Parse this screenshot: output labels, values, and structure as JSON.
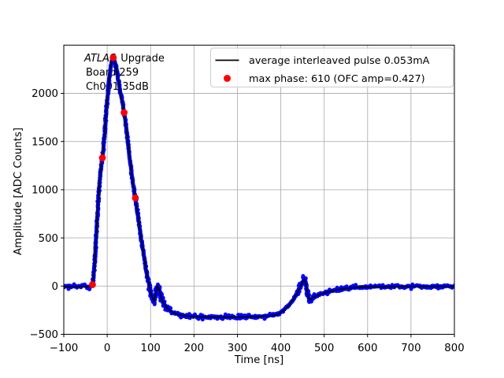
{
  "chart_data": {
    "type": "line",
    "title": "",
    "xlabel": "Time [ns]",
    "ylabel": "Amplitude [ADC Counts]",
    "xlim": [
      -100,
      800
    ],
    "ylim": [
      -500,
      2500
    ],
    "grid": true,
    "xticks": [
      -100,
      0,
      100,
      200,
      300,
      400,
      500,
      600,
      700,
      800
    ],
    "xtick_labels": [
      "−100",
      "0",
      "100",
      "200",
      "300",
      "400",
      "500",
      "600",
      "700",
      "800"
    ],
    "yticks": [
      -500,
      0,
      500,
      1000,
      1500,
      2000
    ],
    "ytick_labels": [
      "−500",
      "0",
      "500",
      "1000",
      "1500",
      "2000"
    ],
    "colors": {
      "line": "#000000",
      "samples": "#0000ff",
      "ofc_dots": "#ff0000",
      "grid": "#b0b0b0"
    },
    "legend": {
      "position": "upper right",
      "entries": [
        {
          "label": "average interleaved pulse 0.053mA",
          "marker": "line",
          "color": "#000000"
        },
        {
          "label": "max phase: 610 (OFC amp=0.427)",
          "marker": "dot",
          "color": "#ff0000"
        }
      ]
    },
    "annotation": {
      "line1_italic": "ATLAS",
      "line1_rest": "Upgrade",
      "line2": "Board 259",
      "line3": "Ch001 35dB"
    },
    "series": [
      {
        "name": "average interleaved pulse 0.053mA",
        "type": "line",
        "color": "#000000",
        "points": [
          [
            -100,
            -5
          ],
          [
            -90,
            -6
          ],
          [
            -80,
            -4
          ],
          [
            -70,
            -6
          ],
          [
            -60,
            -5
          ],
          [
            -50,
            -4
          ],
          [
            -43,
            -5
          ],
          [
            -38,
            -3
          ],
          [
            -35,
            8
          ],
          [
            -32,
            70
          ],
          [
            -29,
            220
          ],
          [
            -26,
            450
          ],
          [
            -23,
            710
          ],
          [
            -20,
            940
          ],
          [
            -17,
            1110
          ],
          [
            -14,
            1230
          ],
          [
            -11,
            1330
          ],
          [
            -8,
            1470
          ],
          [
            -5,
            1645
          ],
          [
            -2,
            1815
          ],
          [
            1,
            1985
          ],
          [
            4,
            2130
          ],
          [
            7,
            2245
          ],
          [
            10,
            2320
          ],
          [
            12,
            2355
          ],
          [
            14,
            2370
          ],
          [
            16,
            2350
          ],
          [
            19,
            2300
          ],
          [
            22,
            2235
          ],
          [
            26,
            2130
          ],
          [
            30,
            2015
          ],
          [
            35,
            1905
          ],
          [
            39,
            1800
          ],
          [
            44,
            1630
          ],
          [
            49,
            1445
          ],
          [
            54,
            1255
          ],
          [
            59,
            1075
          ],
          [
            62,
            995
          ],
          [
            65,
            915
          ],
          [
            69,
            790
          ],
          [
            73,
            660
          ],
          [
            77,
            535
          ],
          [
            81,
            415
          ],
          [
            85,
            300
          ],
          [
            89,
            190
          ],
          [
            93,
            90
          ],
          [
            96,
            20
          ],
          [
            99,
            -45
          ],
          [
            102,
            -95
          ],
          [
            105,
            -125
          ],
          [
            108,
            -162
          ],
          [
            111,
            -95
          ],
          [
            114,
            -25
          ],
          [
            116,
            5
          ],
          [
            118,
            -12
          ],
          [
            121,
            -62
          ],
          [
            124,
            -112
          ],
          [
            127,
            -152
          ],
          [
            131,
            -188
          ],
          [
            136,
            -218
          ],
          [
            142,
            -245
          ],
          [
            149,
            -267
          ],
          [
            157,
            -285
          ],
          [
            166,
            -297
          ],
          [
            176,
            -306
          ],
          [
            188,
            -313
          ],
          [
            202,
            -317
          ],
          [
            218,
            -320
          ],
          [
            235,
            -322
          ],
          [
            252,
            -323
          ],
          [
            270,
            -323
          ],
          [
            288,
            -322
          ],
          [
            306,
            -321
          ],
          [
            324,
            -319
          ],
          [
            342,
            -317
          ],
          [
            360,
            -314
          ],
          [
            375,
            -310
          ],
          [
            387,
            -302
          ],
          [
            396,
            -286
          ],
          [
            404,
            -262
          ],
          [
            412,
            -230
          ],
          [
            420,
            -190
          ],
          [
            428,
            -140
          ],
          [
            436,
            -85
          ],
          [
            443,
            -28
          ],
          [
            448,
            22
          ],
          [
            452,
            58
          ],
          [
            455,
            70
          ],
          [
            458,
            20
          ],
          [
            461,
            -60
          ],
          [
            464,
            -125
          ],
          [
            467,
            -140
          ],
          [
            471,
            -128
          ],
          [
            477,
            -112
          ],
          [
            485,
            -96
          ],
          [
            494,
            -81
          ],
          [
            504,
            -66
          ],
          [
            515,
            -53
          ],
          [
            527,
            -41
          ],
          [
            540,
            -31
          ],
          [
            554,
            -23
          ],
          [
            569,
            -16
          ],
          [
            585,
            -11
          ],
          [
            602,
            -8
          ],
          [
            622,
            -6
          ],
          [
            645,
            -5
          ],
          [
            670,
            -4
          ],
          [
            700,
            -3
          ],
          [
            735,
            -3
          ],
          [
            770,
            -3
          ],
          [
            800,
            -3
          ]
        ]
      },
      {
        "name": "interleaved samples (scatter band)",
        "type": "scatter-band",
        "color": "#0000ff",
        "derived_from": "average interleaved pulse 0.053mA",
        "noise_counts_baseline": 26
      },
      {
        "name": "max phase: 610 (OFC amp=0.427)",
        "type": "scatter",
        "color": "#ff0000",
        "points": [
          [
            -34,
            15
          ],
          [
            -11,
            1330
          ],
          [
            14,
            2370
          ],
          [
            39,
            1800
          ],
          [
            65,
            915
          ]
        ]
      }
    ]
  }
}
